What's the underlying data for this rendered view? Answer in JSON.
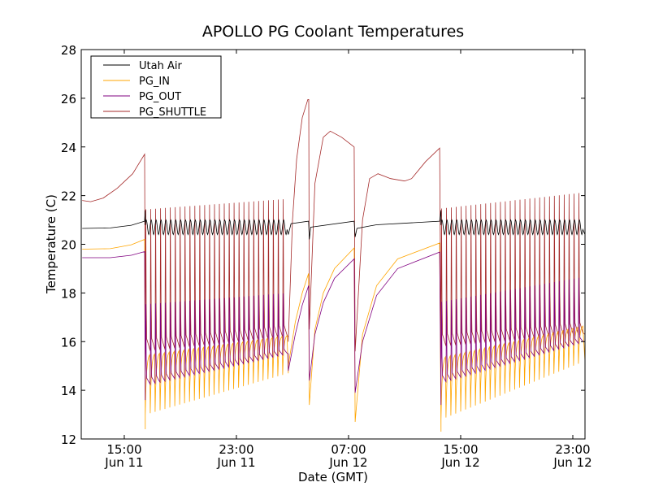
{
  "chart_data": {
    "type": "line",
    "title": "APOLLO PG Coolant Temperatures",
    "xlabel": "Date (GMT)",
    "ylabel": "Temperature (C)",
    "x_units": "hours since Jun 11 00:00 GMT",
    "xlim": [
      11.93,
      47.87
    ],
    "ylim": [
      12,
      28
    ],
    "yticks": [
      12,
      14,
      16,
      18,
      20,
      22,
      24,
      26,
      28
    ],
    "xticks": [
      {
        "x": 15,
        "time": "15:00",
        "date": "Jun 11"
      },
      {
        "x": 23,
        "time": "23:00",
        "date": "Jun 11"
      },
      {
        "x": 31,
        "time": "07:00",
        "date": "Jun 12"
      },
      {
        "x": 39,
        "time": "15:00",
        "date": "Jun 12"
      },
      {
        "x": 47,
        "time": "23:00",
        "date": "Jun 12"
      }
    ],
    "grid": false,
    "legend": {
      "placement": "top-left"
    },
    "series": [
      {
        "key": "air",
        "name": "Utah Air",
        "color": "#000000"
      },
      {
        "key": "in",
        "name": "PG_IN",
        "color": "#ffa500"
      },
      {
        "key": "out",
        "name": "PG_OUT",
        "color": "#800080"
      },
      {
        "key": "sh",
        "name": "PG_SHUTTLE",
        "color": "#a52a2a"
      }
    ],
    "segments": [
      {
        "type": "smooth",
        "air": [
          [
            12,
            20.65
          ],
          [
            14,
            20.67
          ],
          [
            15.5,
            20.78
          ],
          [
            16.45,
            20.95
          ]
        ],
        "in": [
          [
            12,
            19.8
          ],
          [
            14,
            19.82
          ],
          [
            15.5,
            19.98
          ],
          [
            16.45,
            20.2
          ]
        ],
        "out": [
          [
            12,
            19.45
          ],
          [
            14,
            19.45
          ],
          [
            15.5,
            19.55
          ],
          [
            16.45,
            19.7
          ]
        ],
        "sh": [
          [
            12,
            21.8
          ],
          [
            12.6,
            21.75
          ],
          [
            13.5,
            21.9
          ],
          [
            14.5,
            22.3
          ],
          [
            15.6,
            22.9
          ],
          [
            16.45,
            23.7
          ]
        ]
      },
      {
        "type": "cycle",
        "start": 16.5,
        "end": 26.7,
        "period": 0.35,
        "drop": {
          "air": 21.4,
          "in": 12.4,
          "out": 13.6,
          "sh": 15.5
        },
        "air": {
          "min": [
            20.4,
            20.4
          ],
          "max": [
            21.0,
            21.0
          ]
        },
        "in": {
          "min": [
            13.0,
            14.7
          ],
          "max": [
            15.5,
            16.3
          ]
        },
        "out": {
          "min": [
            14.2,
            15.5
          ],
          "max": [
            18.2,
            18.5
          ]
        },
        "sh": {
          "min": [
            15.6,
            16.2
          ],
          "max": [
            22.6,
            23.0
          ]
        }
      },
      {
        "type": "smooth",
        "air": [
          [
            26.7,
            20.4
          ],
          [
            26.9,
            20.85
          ],
          [
            28.15,
            20.95
          ]
        ],
        "in": [
          [
            26.7,
            15.0
          ],
          [
            27.2,
            16.8
          ],
          [
            27.7,
            18.0
          ],
          [
            28.15,
            18.8
          ]
        ],
        "out": [
          [
            26.7,
            14.8
          ],
          [
            27.2,
            16.3
          ],
          [
            27.7,
            17.5
          ],
          [
            28.15,
            18.3
          ]
        ],
        "sh": [
          [
            26.7,
            16.0
          ],
          [
            27.0,
            21
          ],
          [
            27.3,
            23.5
          ],
          [
            27.7,
            25.2
          ],
          [
            28.1,
            25.95
          ],
          [
            28.16,
            25.95
          ]
        ]
      },
      {
        "type": "smooth",
        "air": [
          [
            28.2,
            20.2
          ],
          [
            28.3,
            20.7
          ],
          [
            31.4,
            20.95
          ]
        ],
        "in": [
          [
            28.2,
            13.4
          ],
          [
            28.6,
            16.5
          ],
          [
            29.2,
            18.0
          ],
          [
            30,
            19.0
          ],
          [
            31.4,
            19.85
          ]
        ],
        "out": [
          [
            28.2,
            14.4
          ],
          [
            28.6,
            16.3
          ],
          [
            29.2,
            17.6
          ],
          [
            30,
            18.6
          ],
          [
            31.4,
            19.4
          ]
        ],
        "sh": [
          [
            28.2,
            16.5
          ],
          [
            28.6,
            22.5
          ],
          [
            29.2,
            24.4
          ],
          [
            29.7,
            24.65
          ],
          [
            30.5,
            24.4
          ],
          [
            31.4,
            24.0
          ]
        ]
      },
      {
        "type": "smooth",
        "air": [
          [
            31.47,
            20.3
          ],
          [
            31.6,
            20.65
          ],
          [
            32.5,
            20.75
          ],
          [
            33,
            20.8
          ],
          [
            37.5,
            20.95
          ]
        ],
        "in": [
          [
            31.47,
            12.7
          ],
          [
            32,
            16.3
          ],
          [
            33,
            18.3
          ],
          [
            34.5,
            19.4
          ],
          [
            37.5,
            20.05
          ]
        ],
        "out": [
          [
            31.47,
            13.9
          ],
          [
            32,
            16.0
          ],
          [
            33,
            17.9
          ],
          [
            34.5,
            19.0
          ],
          [
            37.5,
            19.68
          ]
        ],
        "sh": [
          [
            31.47,
            15.6
          ],
          [
            32,
            21.0
          ],
          [
            32.5,
            22.7
          ],
          [
            33.1,
            22.9
          ],
          [
            34,
            22.7
          ],
          [
            35,
            22.6
          ],
          [
            35.5,
            22.7
          ],
          [
            36.5,
            23.4
          ],
          [
            37.5,
            23.95
          ]
        ]
      },
      {
        "type": "cycle",
        "start": 37.6,
        "end": 47.87,
        "period": 0.35,
        "drop": {
          "air": 21.4,
          "in": 12.3,
          "out": 13.4,
          "sh": 15.3
        },
        "air": {
          "min": [
            20.4,
            20.4
          ],
          "max": [
            21.0,
            21.0
          ]
        },
        "in": {
          "min": [
            12.8,
            15.2
          ],
          "max": [
            15.4,
            16.7
          ]
        },
        "out": {
          "min": [
            14.3,
            16.0
          ],
          "max": [
            18.3,
            19.2
          ]
        },
        "sh": {
          "min": [
            15.8,
            16.3
          ],
          "max": [
            22.6,
            23.3
          ]
        }
      }
    ]
  }
}
